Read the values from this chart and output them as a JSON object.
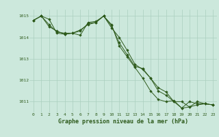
{
  "series1": {
    "x": [
      0,
      1,
      2,
      3,
      4,
      5,
      6,
      7,
      8,
      9,
      10,
      11,
      12,
      13,
      14,
      15,
      16,
      17,
      18,
      19,
      20,
      21,
      22,
      23
    ],
    "y": [
      1014.8,
      1015.0,
      1014.85,
      1014.2,
      1014.15,
      1014.2,
      1014.1,
      1014.7,
      1014.75,
      1015.0,
      1014.6,
      1013.6,
      1013.1,
      1012.6,
      1012.1,
      1011.5,
      1011.1,
      1011.0,
      1011.05,
      1010.7,
      1011.0,
      1010.9,
      1010.9,
      1010.85
    ]
  },
  "series2": {
    "x": [
      0,
      1,
      2,
      3,
      4,
      5,
      6,
      7,
      8,
      9,
      10,
      11,
      12,
      13,
      14,
      15,
      16,
      17,
      18,
      19,
      20,
      21,
      22,
      23
    ],
    "y": [
      1014.8,
      1015.0,
      1014.5,
      1014.3,
      1014.15,
      1014.2,
      1014.35,
      1014.6,
      1014.7,
      1015.0,
      1014.45,
      1014.0,
      1013.4,
      1012.75,
      1012.5,
      1012.1,
      1011.65,
      1011.45,
      1011.0,
      1011.0,
      1010.75,
      1010.85,
      1010.9,
      1010.85
    ]
  },
  "series3": {
    "x": [
      0,
      1,
      2,
      3,
      4,
      5,
      6,
      7,
      8,
      9,
      10,
      11,
      12,
      13,
      14,
      15,
      16,
      17,
      18,
      19,
      20,
      21,
      22,
      23
    ],
    "y": [
      1014.8,
      1015.0,
      1014.6,
      1014.25,
      1014.2,
      1014.2,
      1014.3,
      1014.65,
      1014.7,
      1015.0,
      1014.55,
      1013.75,
      1013.2,
      1012.65,
      1012.55,
      1012.1,
      1011.5,
      1011.3,
      1011.0,
      1010.7,
      1010.75,
      1011.0,
      1010.9,
      1010.85
    ]
  },
  "line_color": "#2d5a1b",
  "marker": "D",
  "marker_size": 1.8,
  "bg_color": "#cce8dc",
  "grid_color": "#aacfbe",
  "xlabel": "Graphe pression niveau de la mer (hPa)",
  "ylim": [
    1010.5,
    1015.3
  ],
  "yticks": [
    1011,
    1012,
    1013,
    1014,
    1015
  ],
  "xticks": [
    0,
    1,
    2,
    3,
    4,
    5,
    6,
    7,
    8,
    9,
    10,
    11,
    12,
    13,
    14,
    15,
    16,
    17,
    18,
    19,
    20,
    21,
    22,
    23
  ],
  "tick_fontsize": 4.5,
  "xlabel_fontsize": 6.0,
  "line_width": 0.7
}
